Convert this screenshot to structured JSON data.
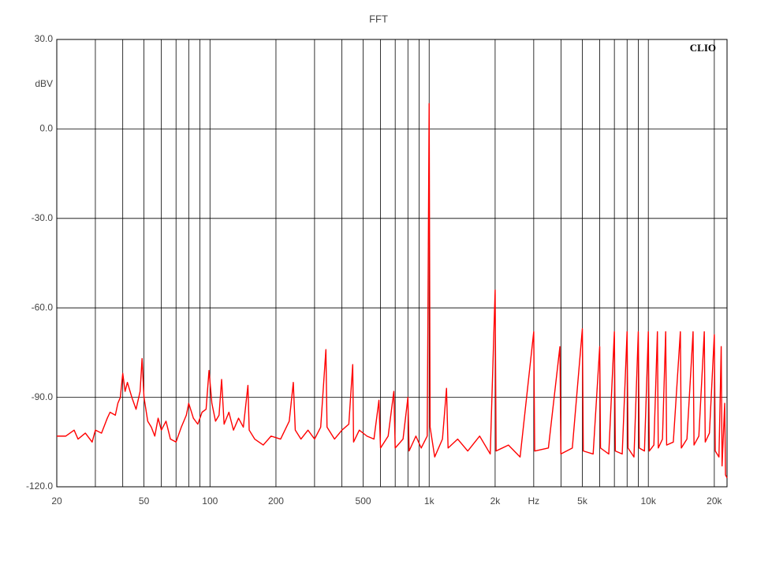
{
  "chart_data": {
    "type": "line",
    "title": "FFT",
    "badge": "CLIO",
    "y_label": "dBV",
    "xscale": "log",
    "grid": true,
    "color": "#ff0000",
    "xlim": [
      20,
      22860
    ],
    "ylim": [
      -120,
      30
    ],
    "yticks": [
      {
        "value": -120,
        "label": "-120.0"
      },
      {
        "value": -90,
        "label": "-90.0"
      },
      {
        "value": -60,
        "label": "-60.0"
      },
      {
        "value": -30,
        "label": "-30.0"
      },
      {
        "value": 0,
        "label": "0.0"
      },
      {
        "value": 30,
        "label": "30.0"
      }
    ],
    "xticks": [
      20,
      {
        "value": 30,
        "label": null
      },
      {
        "value": 40,
        "label": null
      },
      50,
      {
        "value": 60,
        "label": null
      },
      {
        "value": 70,
        "label": null
      },
      {
        "value": 80,
        "label": null
      },
      {
        "value": 90,
        "label": null
      },
      100,
      200,
      {
        "value": 300,
        "label": null
      },
      {
        "value": 400,
        "label": null
      },
      500,
      {
        "value": 600,
        "label": null
      },
      {
        "value": 700,
        "label": null
      },
      {
        "value": 800,
        "label": null
      },
      {
        "value": 900,
        "label": null
      },
      {
        "value": 1000,
        "label": "1k"
      },
      {
        "value": 2000,
        "label": "2k"
      },
      {
        "value": 3000,
        "label": "Hz"
      },
      {
        "value": 4000,
        "label": null
      },
      {
        "value": 5000,
        "label": "5k"
      },
      {
        "value": 6000,
        "label": null
      },
      {
        "value": 7000,
        "label": null
      },
      {
        "value": 8000,
        "label": null
      },
      {
        "value": 9000,
        "label": null
      },
      {
        "value": 10000,
        "label": "10k"
      },
      {
        "value": 20000,
        "label": "20k"
      }
    ],
    "x": [
      20,
      22,
      24,
      25,
      27,
      29,
      30,
      32,
      34,
      35,
      37,
      38,
      39,
      40,
      41,
      42,
      44,
      46,
      48,
      49,
      50,
      52,
      54,
      56,
      58,
      60,
      63,
      66,
      70,
      74,
      78,
      80,
      84,
      88,
      92,
      96,
      99,
      102,
      106,
      110,
      113,
      116,
      122,
      128,
      135,
      142,
      149,
      151,
      160,
      175,
      190,
      210,
      230,
      240,
      245,
      260,
      280,
      300,
      320,
      338,
      342,
      370,
      400,
      430,
      448,
      452,
      480,
      520,
      560,
      590,
      600,
      650,
      690,
      700,
      760,
      800,
      810,
      870,
      920,
      980,
      1000,
      1010,
      1060,
      1150,
      1200,
      1220,
      1350,
      1500,
      1700,
      1900,
      2000,
      2020,
      2300,
      2600,
      3000,
      3030,
      3500,
      3950,
      3990,
      4500,
      5000,
      5050,
      5600,
      6000,
      6050,
      6600,
      7000,
      7070,
      7600,
      8000,
      8080,
      8600,
      9000,
      9090,
      9600,
      10000,
      10100,
      10600,
      11000,
      11100,
      11600,
      12000,
      12120,
      13000,
      14000,
      14140,
      15000,
      16000,
      16160,
      17000,
      18000,
      18180,
      19000,
      20000,
      20200,
      21000,
      21500,
      21700,
      22300,
      22500,
      22860
    ],
    "values": [
      -103,
      -103,
      -101,
      -104,
      -102,
      -105,
      -101,
      -102,
      -97,
      -95,
      -96,
      -92,
      -90,
      -82,
      -88,
      -85,
      -90,
      -94,
      -88,
      -77,
      -90,
      -98,
      -100,
      -103,
      -97,
      -101,
      -98,
      -104,
      -105,
      -100,
      -96,
      -92,
      -97,
      -99,
      -95,
      -94,
      -81,
      -92,
      -98,
      -96,
      -84,
      -99,
      -95,
      -101,
      -97,
      -100,
      -86,
      -101,
      -104,
      -106,
      -103,
      -104,
      -98,
      -85,
      -101,
      -104,
      -101,
      -104,
      -100,
      -74,
      -100,
      -104,
      -101,
      -99,
      -79,
      -105,
      -101,
      -103,
      -104,
      -91,
      -107,
      -103,
      -88,
      -107,
      -104,
      -90,
      -108,
      -103,
      -107,
      -103,
      8.5,
      -100,
      -110,
      -104,
      -87,
      -107,
      -104,
      -108,
      -103,
      -109,
      -54,
      -108,
      -106,
      -110,
      -68,
      -108,
      -107,
      -73,
      -109,
      -107,
      -67,
      -108,
      -109,
      -73,
      -107,
      -109,
      -68,
      -108,
      -109,
      -68,
      -107,
      -110,
      -68,
      -107,
      -108,
      -68,
      -108,
      -106,
      -68,
      -107,
      -104,
      -68,
      -106,
      -105,
      -68,
      -107,
      -104,
      -68,
      -106,
      -103,
      -68,
      -105,
      -102,
      -69,
      -108,
      -110,
      -73,
      -113,
      -92,
      -116,
      -117
    ]
  }
}
